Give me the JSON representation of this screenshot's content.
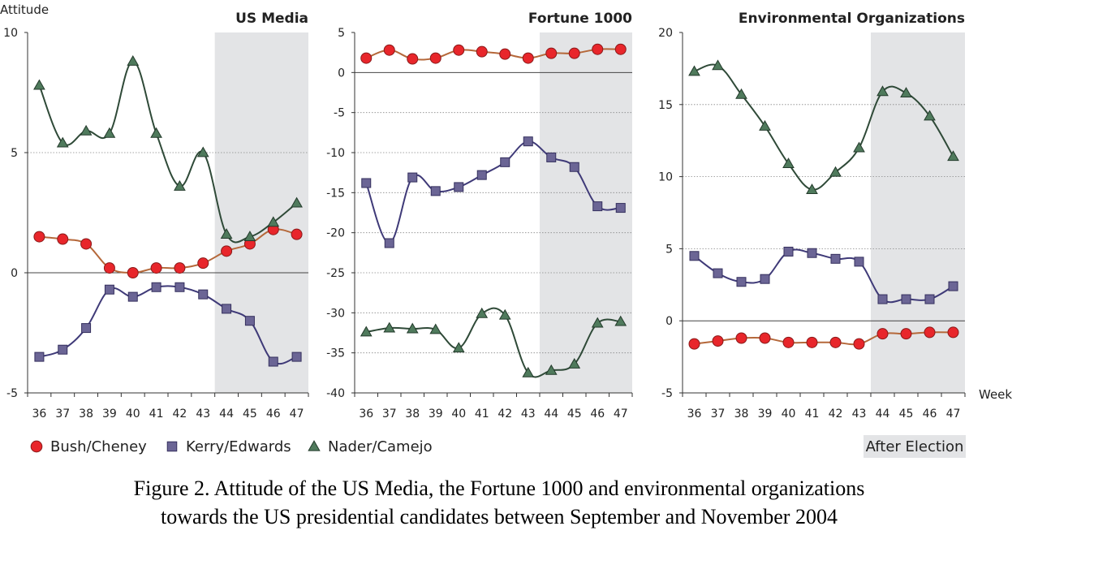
{
  "figure": {
    "y_axis_label": "Attitude",
    "x_axis_label": "Week",
    "after_election_label": "After Election",
    "caption_line_1": "Figure 2. Attitude of the US Media, the Fortune 1000 and environmental organizations",
    "caption_line_2": "towards the US presidential candidates between September and November 2004"
  },
  "legend": [
    {
      "name": "Bush/Cheney",
      "marker": "circle"
    },
    {
      "name": "Kerry/Edwards",
      "marker": "square"
    },
    {
      "name": "Nader/Camejo",
      "marker": "triangle"
    }
  ],
  "colors": {
    "bush_fill": "#e8262b",
    "bush_line": "#b5683a",
    "kerry_fill": "#6b6595",
    "kerry_line": "#3f3a78",
    "nader_fill": "#4f7a5c",
    "nader_line": "#2f4a38",
    "shade": "#e3e4e6",
    "grid": "#888888"
  },
  "chart_data": [
    {
      "type": "line",
      "title": "US Media",
      "x": [
        36,
        37,
        38,
        39,
        40,
        41,
        42,
        43,
        44,
        45,
        46,
        47
      ],
      "ylim": [
        -5,
        10
      ],
      "yticks": [
        -5,
        0,
        5,
        10
      ],
      "shaded_x_range": [
        44,
        47
      ],
      "series": [
        {
          "name": "Bush/Cheney",
          "values": [
            1.5,
            1.4,
            1.2,
            0.2,
            0.0,
            0.2,
            0.2,
            0.4,
            0.9,
            1.2,
            1.8,
            1.6
          ]
        },
        {
          "name": "Kerry/Edwards",
          "values": [
            -3.5,
            -3.2,
            -2.3,
            -0.7,
            -1.0,
            -0.6,
            -0.6,
            -0.9,
            -1.5,
            -2.0,
            -3.7,
            -3.5
          ]
        },
        {
          "name": "Nader/Camejo",
          "values": [
            7.8,
            5.4,
            5.9,
            5.8,
            8.8,
            5.8,
            3.6,
            5.0,
            1.6,
            1.5,
            2.1,
            2.9
          ]
        }
      ]
    },
    {
      "type": "line",
      "title": "Fortune 1000",
      "x": [
        36,
        37,
        38,
        39,
        40,
        41,
        42,
        43,
        44,
        45,
        46,
        47
      ],
      "ylim": [
        -40,
        5
      ],
      "yticks": [
        -40,
        -35,
        -30,
        -25,
        -20,
        -15,
        -10,
        -5,
        0,
        5
      ],
      "shaded_x_range": [
        44,
        47
      ],
      "series": [
        {
          "name": "Bush/Cheney",
          "values": [
            1.8,
            2.8,
            1.7,
            1.8,
            2.8,
            2.6,
            2.3,
            1.8,
            2.4,
            2.4,
            2.9,
            2.9
          ]
        },
        {
          "name": "Kerry/Edwards",
          "values": [
            -13.8,
            -21.3,
            -13.1,
            -14.8,
            -14.3,
            -12.8,
            -11.2,
            -8.6,
            -10.6,
            -11.8,
            -16.7,
            -16.9
          ]
        },
        {
          "name": "Nader/Camejo",
          "values": [
            -32.4,
            -31.9,
            -32.0,
            -32.1,
            -34.4,
            -30.1,
            -30.3,
            -37.5,
            -37.2,
            -36.4,
            -31.3,
            -31.1
          ]
        }
      ]
    },
    {
      "type": "line",
      "title": "Environmental Organizations",
      "x": [
        36,
        37,
        38,
        39,
        40,
        41,
        42,
        43,
        44,
        45,
        46,
        47
      ],
      "ylim": [
        -5,
        20
      ],
      "yticks": [
        -5,
        0,
        5,
        10,
        15,
        20
      ],
      "shaded_x_range": [
        44,
        47
      ],
      "series": [
        {
          "name": "Bush/Cheney",
          "values": [
            -1.6,
            -1.4,
            -1.2,
            -1.2,
            -1.5,
            -1.5,
            -1.5,
            -1.6,
            -0.9,
            -0.9,
            -0.8,
            -0.8
          ]
        },
        {
          "name": "Kerry/Edwards",
          "values": [
            4.5,
            3.3,
            2.7,
            2.9,
            4.8,
            4.7,
            4.3,
            4.1,
            1.5,
            1.5,
            1.5,
            2.4
          ]
        },
        {
          "name": "Nader/Camejo",
          "values": [
            17.3,
            17.7,
            15.7,
            13.5,
            10.9,
            9.1,
            10.3,
            12.0,
            15.9,
            15.8,
            14.2,
            11.4
          ]
        }
      ]
    }
  ]
}
